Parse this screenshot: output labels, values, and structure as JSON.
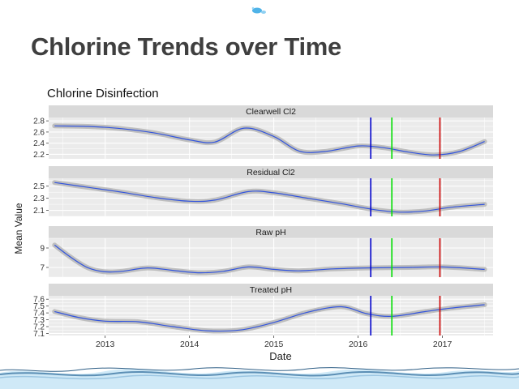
{
  "slide": {
    "title": "Chlorine Trends over Time"
  },
  "colors": {
    "panel_bg": "#ebebeb",
    "strip_bg": "#d9d9d9",
    "trend": "#3355dd",
    "band": "#b3b3b3",
    "line_blue": "#0000cc",
    "line_green": "#00dd00",
    "line_red": "#cc0000"
  },
  "chart_data": {
    "type": "line",
    "title": "Chlorine Disinfection",
    "xlabel": "Date",
    "ylabel": "Mean Value",
    "x_ticks": [
      "2013",
      "2014",
      "2015",
      "2016",
      "2017"
    ],
    "x_range": [
      2012.33,
      2017.6
    ],
    "vertical_lines": [
      {
        "x": 2016.15,
        "color": "#0000cc"
      },
      {
        "x": 2016.4,
        "color": "#00dd00"
      },
      {
        "x": 2016.97,
        "color": "#cc0000"
      }
    ],
    "panels": [
      {
        "title": "Clearwell Cl2",
        "yticks": [
          "2.2",
          "2.4",
          "2.6",
          "2.8"
        ],
        "ylim": [
          2.12,
          2.86
        ],
        "series": {
          "x": [
            2012.4,
            2012.8,
            2013.2,
            2013.6,
            2014.0,
            2014.3,
            2014.65,
            2015.0,
            2015.3,
            2015.6,
            2016.0,
            2016.3,
            2016.6,
            2016.9,
            2017.2,
            2017.5
          ],
          "y": [
            2.71,
            2.7,
            2.66,
            2.58,
            2.46,
            2.42,
            2.67,
            2.52,
            2.26,
            2.25,
            2.35,
            2.32,
            2.24,
            2.19,
            2.25,
            2.43
          ]
        }
      },
      {
        "title": "Residual Cl2",
        "yticks": [
          "2.1",
          "2.3",
          "2.5"
        ],
        "ylim": [
          2.0,
          2.63
        ],
        "series": {
          "x": [
            2012.4,
            2012.8,
            2013.2,
            2013.6,
            2014.0,
            2014.3,
            2014.7,
            2015.0,
            2015.4,
            2015.8,
            2016.2,
            2016.5,
            2016.8,
            2017.1,
            2017.5
          ],
          "y": [
            2.56,
            2.48,
            2.4,
            2.31,
            2.25,
            2.27,
            2.41,
            2.39,
            2.3,
            2.21,
            2.11,
            2.07,
            2.09,
            2.15,
            2.2
          ]
        }
      },
      {
        "title": "Raw pH",
        "yticks": [
          "7",
          "9"
        ],
        "ylim": [
          6.0,
          10.0
        ],
        "series": {
          "x": [
            2012.4,
            2012.6,
            2012.8,
            2013.0,
            2013.2,
            2013.5,
            2013.8,
            2014.1,
            2014.4,
            2014.7,
            2015.0,
            2015.3,
            2015.7,
            2016.1,
            2016.6,
            2017.0,
            2017.5
          ],
          "y": [
            9.3,
            8.0,
            6.95,
            6.55,
            6.6,
            6.95,
            6.7,
            6.45,
            6.6,
            7.05,
            6.8,
            6.65,
            6.85,
            6.95,
            7.0,
            7.05,
            6.8
          ]
        }
      },
      {
        "title": "Treated pH",
        "yticks": [
          "7.1",
          "7.2",
          "7.3",
          "7.4",
          "7.5",
          "7.6"
        ],
        "ylim": [
          7.07,
          7.65
        ],
        "series": {
          "x": [
            2012.4,
            2012.7,
            2013.0,
            2013.4,
            2013.8,
            2014.2,
            2014.6,
            2015.0,
            2015.4,
            2015.8,
            2016.1,
            2016.4,
            2016.8,
            2017.1,
            2017.5
          ],
          "y": [
            7.42,
            7.33,
            7.28,
            7.27,
            7.2,
            7.14,
            7.15,
            7.26,
            7.41,
            7.49,
            7.39,
            7.35,
            7.42,
            7.47,
            7.52
          ]
        }
      }
    ]
  }
}
